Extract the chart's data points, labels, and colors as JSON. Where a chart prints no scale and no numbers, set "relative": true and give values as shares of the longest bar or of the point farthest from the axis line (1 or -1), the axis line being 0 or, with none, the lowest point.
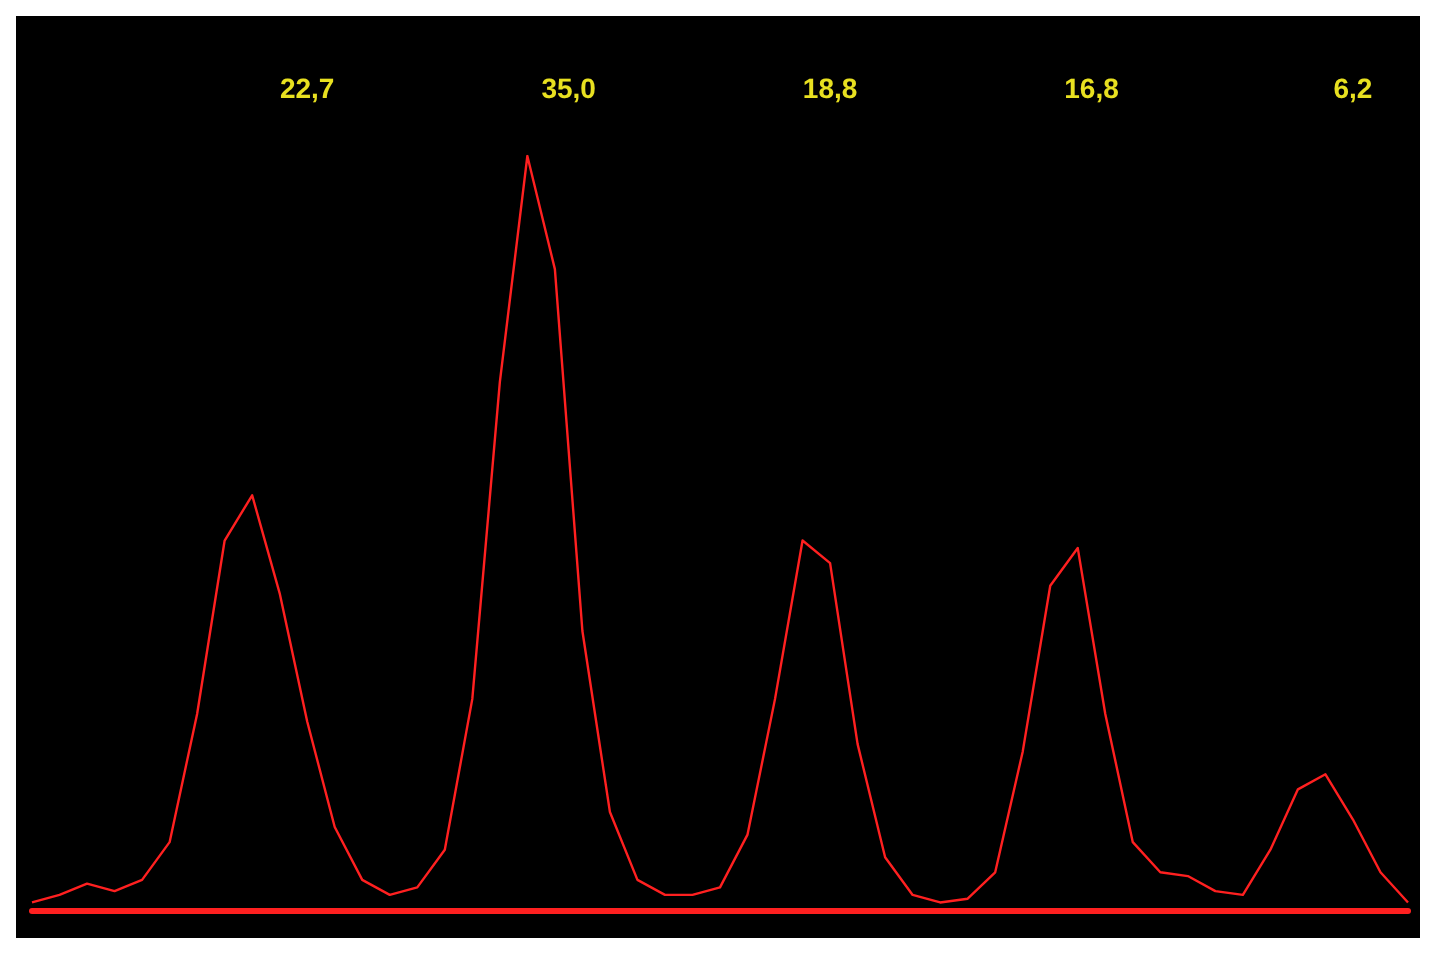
{
  "chart_data": {
    "type": "line",
    "relative": true,
    "marker": "none",
    "line_style": "solid",
    "categories": [
      null,
      null,
      null,
      null,
      null,
      null,
      null,
      null,
      null,
      null,
      null,
      null,
      null,
      null,
      null,
      null,
      null,
      null,
      null,
      null,
      null,
      null,
      null,
      null,
      null,
      null,
      null,
      null,
      null,
      null,
      null,
      null,
      null,
      null,
      null,
      null,
      null,
      null,
      null,
      null,
      null,
      null,
      null,
      null,
      null,
      null,
      null,
      null,
      null,
      null,
      null
    ],
    "series": [
      {
        "color": "#ff2020",
        "values": [
          0.01,
          0.02,
          0.035,
          0.025,
          0.04,
          0.09,
          0.26,
          0.49,
          0.55,
          0.42,
          0.25,
          0.11,
          0.04,
          0.02,
          0.03,
          0.08,
          0.28,
          0.7,
          1,
          0.85,
          0.37,
          0.13,
          0.04,
          0.02,
          0.02,
          0.03,
          0.1,
          0.28,
          0.49,
          0.46,
          0.22,
          0.07,
          0.02,
          0.01,
          0.015,
          0.05,
          0.21,
          0.43,
          0.48,
          0.26,
          0.09,
          0.05,
          0.045,
          0.025,
          0.02,
          0.08,
          0.16,
          0.18,
          0.12,
          0.05,
          0.01
        ]
      }
    ],
    "annotations": [
      "22,7",
      "35,0",
      "18,8",
      "16,8",
      "6,2"
    ]
  }
}
